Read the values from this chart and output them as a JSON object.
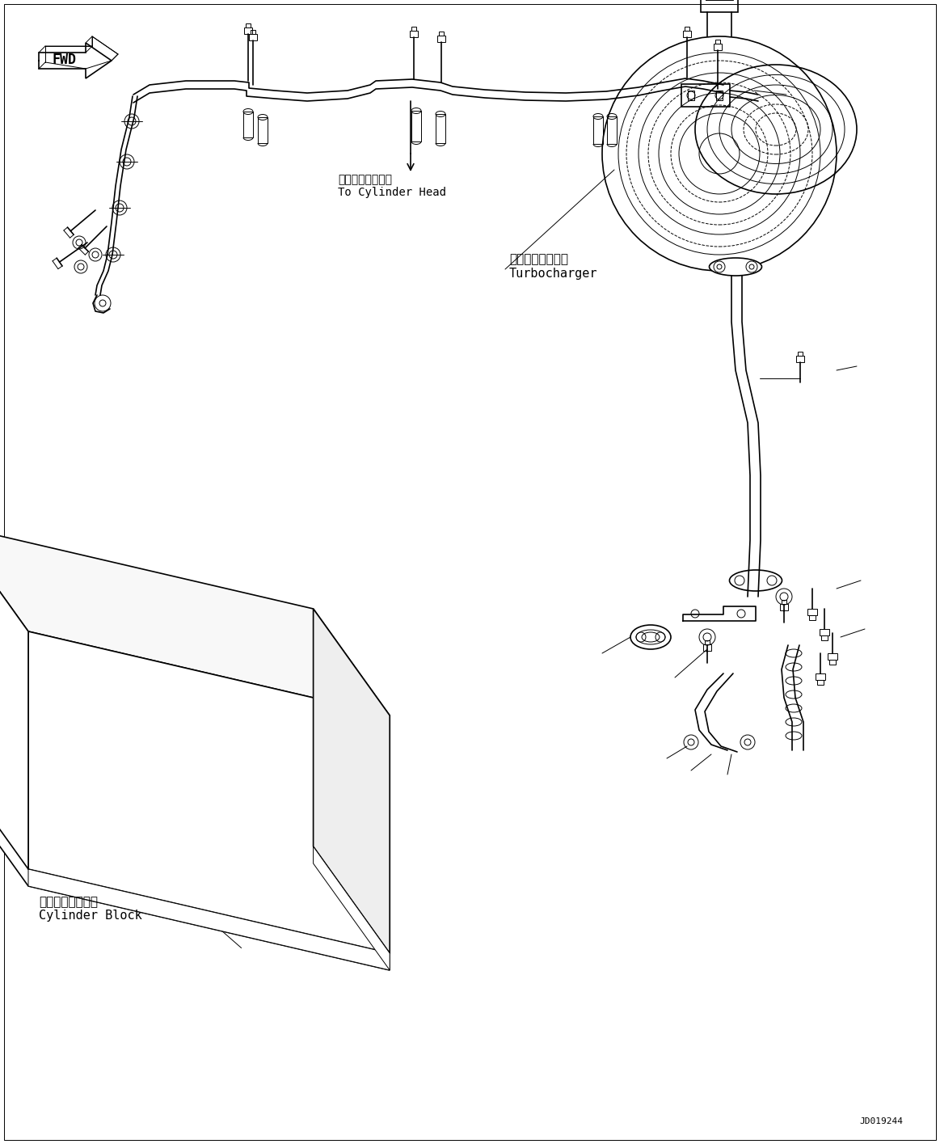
{
  "background_color": "#ffffff",
  "line_color": "#000000",
  "fig_width": 11.63,
  "fig_height": 14.15,
  "dpi": 100,
  "watermark": "JD019244",
  "labels": {
    "cylinder_head_jp": "シリンダヘッドへ",
    "cylinder_head_en": "To Cylinder Head",
    "turbocharger_jp": "ターボチャージャ",
    "turbocharger_en": "Turbocharger",
    "cylinder_block_jp": "シリンダブロック",
    "cylinder_block_en": "Cylinder Block"
  }
}
